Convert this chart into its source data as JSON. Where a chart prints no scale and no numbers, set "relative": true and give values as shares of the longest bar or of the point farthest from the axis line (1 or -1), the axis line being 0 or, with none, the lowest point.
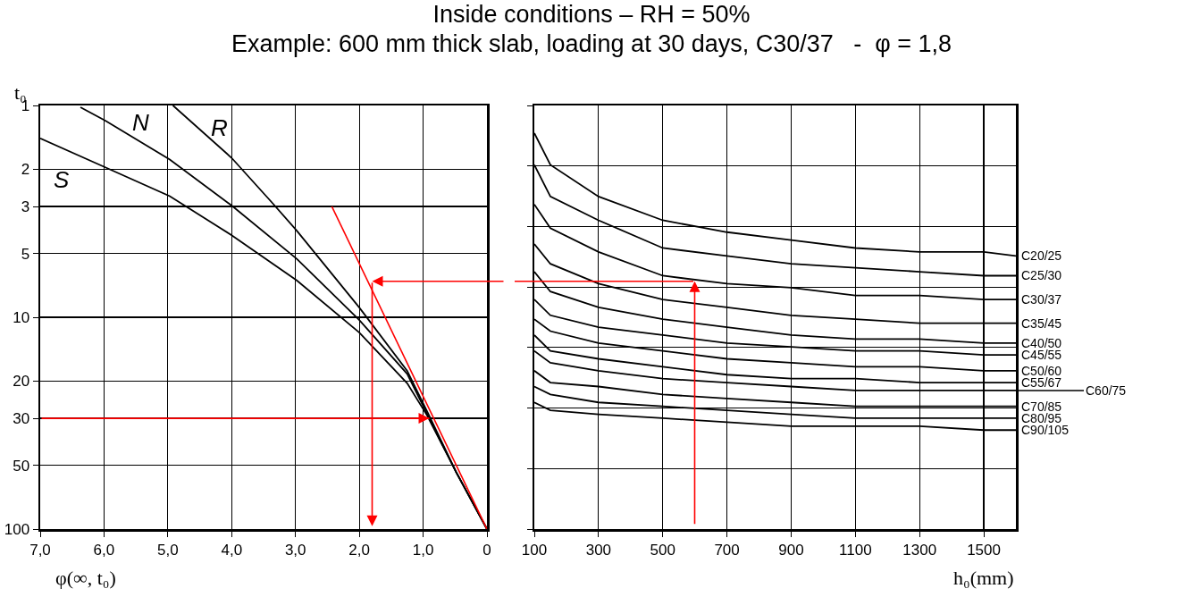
{
  "chart_data": [
    {
      "type": "line",
      "title": "Inside conditions – RH = 50%",
      "subtitle": "Example: 600 mm thick slab, loading at 30 days, C30/37   -  φ = 1,8",
      "xlabel": "φ(∞, t₀)",
      "ylabel": "t₀",
      "xlim": [
        7,
        0
      ],
      "xticks": [
        {
          "value": 7,
          "label": "7,0"
        },
        {
          "value": 6,
          "label": "6,0"
        },
        {
          "value": 5,
          "label": "5,0"
        },
        {
          "value": 4,
          "label": "4,0"
        },
        {
          "value": 3,
          "label": "3,0"
        },
        {
          "value": 2,
          "label": "2,0"
        },
        {
          "value": 1,
          "label": "1,0"
        },
        0
      ],
      "ylim": [
        100,
        1
      ],
      "yticks": [
        1,
        2,
        3,
        5,
        10,
        20,
        30,
        50,
        100
      ],
      "log": true,
      "grid": true,
      "ref_lines": [
        {
          "axis": "y",
          "value": 30,
          "color": "#ff0000"
        }
      ],
      "series": [
        {
          "name": "S",
          "color": "#000000",
          "x": [
            7.0,
            5.98,
            4.97,
            4.0,
            2.98,
            2.0,
            1.25,
            0.94,
            0.48,
            0
          ],
          "values": [
            1.43,
            1.96,
            2.68,
            4.1,
            6.7,
            11.8,
            20.5,
            29,
            54,
            100
          ]
        },
        {
          "name": "N",
          "color": "#000000",
          "x": [
            6.37,
            5.98,
            4.97,
            4.0,
            2.98,
            2.0,
            1.25,
            0.94,
            0.48,
            0
          ],
          "values": [
            1.02,
            1.18,
            1.8,
            2.97,
            5.3,
            10.3,
            18.5,
            28.5,
            54,
            100
          ]
        },
        {
          "name": "R",
          "color": "#000000",
          "x": [
            4.92,
            4.0,
            3.37,
            2.98,
            2.0,
            1.25,
            0.92,
            0.48,
            0
          ],
          "values": [
            1.0,
            1.77,
            2.87,
            3.9,
            9.0,
            17.9,
            28.5,
            54,
            100
          ]
        },
        {
          "color": "#ff0000",
          "x": [
            2.43,
            0
          ],
          "values": [
            3.0,
            100
          ]
        }
      ]
    },
    {
      "type": "line",
      "xlabel": "h₀(mm)",
      "relative": true,
      "xlim": [
        100,
        1600
      ],
      "xticks": [
        100,
        300,
        500,
        700,
        900,
        1100,
        1300,
        1500
      ],
      "grid": true,
      "tick_labels": "x",
      "series": [
        {
          "name": "C20/25",
          "color": "#000000",
          "x": [
            100,
            150,
            300,
            500,
            700,
            900,
            1100,
            1300,
            1500,
            1600
          ],
          "values": [
            1.0,
            0.92,
            0.84,
            0.78,
            0.75,
            0.73,
            0.71,
            0.7,
            0.7,
            0.69
          ]
        },
        {
          "name": "C25/30",
          "color": "#000000",
          "x": [
            100,
            150,
            300,
            500,
            700,
            900,
            1100,
            1300,
            1500,
            1600
          ],
          "values": [
            0.92,
            0.84,
            0.78,
            0.71,
            0.69,
            0.67,
            0.66,
            0.65,
            0.64,
            0.64
          ]
        },
        {
          "name": "C30/37",
          "color": "#000000",
          "x": [
            100,
            150,
            300,
            500,
            700,
            900,
            1100,
            1300,
            1500,
            1600
          ],
          "values": [
            0.82,
            0.76,
            0.7,
            0.64,
            0.62,
            0.61,
            0.59,
            0.59,
            0.58,
            0.58
          ]
        },
        {
          "name": "C35/45",
          "color": "#000000",
          "x": [
            100,
            150,
            300,
            500,
            700,
            900,
            1100,
            1300,
            1500,
            1600
          ],
          "values": [
            0.72,
            0.67,
            0.62,
            0.58,
            0.56,
            0.54,
            0.53,
            0.52,
            0.52,
            0.52
          ]
        },
        {
          "name": "C40/50",
          "color": "#000000",
          "x": [
            100,
            150,
            300,
            500,
            700,
            900,
            1100,
            1300,
            1500,
            1600
          ],
          "values": [
            0.65,
            0.6,
            0.56,
            0.53,
            0.51,
            0.49,
            0.48,
            0.48,
            0.47,
            0.47
          ]
        },
        {
          "name": "C45/55",
          "color": "#000000",
          "x": [
            100,
            150,
            300,
            500,
            700,
            900,
            1100,
            1300,
            1500,
            1600
          ],
          "values": [
            0.58,
            0.54,
            0.51,
            0.49,
            0.47,
            0.46,
            0.45,
            0.45,
            0.44,
            0.44
          ]
        },
        {
          "name": "C50/60",
          "color": "#000000",
          "x": [
            100,
            150,
            300,
            500,
            700,
            900,
            1100,
            1300,
            1500,
            1600
          ],
          "values": [
            0.53,
            0.5,
            0.47,
            0.45,
            0.43,
            0.42,
            0.41,
            0.41,
            0.4,
            0.4
          ]
        },
        {
          "name": "C55/67",
          "color": "#000000",
          "x": [
            100,
            150,
            300,
            500,
            700,
            900,
            1100,
            1300,
            1500,
            1600
          ],
          "values": [
            0.49,
            0.45,
            0.43,
            0.41,
            0.39,
            0.38,
            0.38,
            0.37,
            0.37,
            0.37
          ]
        },
        {
          "name": "C60/75",
          "color": "#000000",
          "x": [
            100,
            150,
            300,
            500,
            700,
            900,
            1100,
            1300,
            1500,
            1600
          ],
          "values": [
            0.45,
            0.42,
            0.4,
            0.38,
            0.37,
            0.36,
            0.35,
            0.35,
            0.35,
            0.35
          ]
        },
        {
          "name": "C70/85",
          "color": "#000000",
          "x": [
            100,
            150,
            300,
            500,
            700,
            900,
            1100,
            1300,
            1500,
            1600
          ],
          "values": [
            0.4,
            0.37,
            0.36,
            0.34,
            0.33,
            0.32,
            0.31,
            0.31,
            0.31,
            0.31
          ]
        },
        {
          "name": "C80/95",
          "color": "#000000",
          "x": [
            100,
            150,
            300,
            500,
            700,
            900,
            1100,
            1300,
            1500,
            1600
          ],
          "values": [
            0.36,
            0.34,
            0.32,
            0.31,
            0.3,
            0.29,
            0.28,
            0.28,
            0.28,
            0.28
          ]
        },
        {
          "name": "C90/105",
          "color": "#000000",
          "x": [
            100,
            150,
            300,
            500,
            700,
            900,
            1100,
            1300,
            1500,
            1600
          ],
          "values": [
            0.32,
            0.3,
            0.29,
            0.28,
            0.27,
            0.26,
            0.26,
            0.26,
            0.25,
            0.25
          ]
        }
      ]
    }
  ]
}
